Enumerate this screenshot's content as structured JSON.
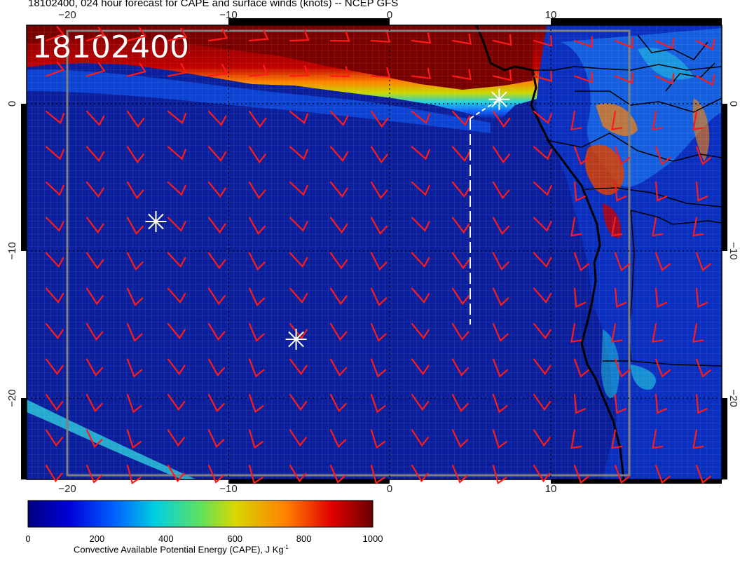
{
  "title": "18102400, 024 hour forecast for CAPE and surface winds (knots) -- NCEP GFS",
  "stamp": "18102400",
  "axes": {
    "lon_ticks_top": [
      "−20",
      "−10",
      "0",
      "10"
    ],
    "lon_ticks_bottom": [
      "−20",
      "−10",
      "0",
      "10"
    ],
    "lat_ticks_left": [
      "0",
      "−10",
      "−20"
    ],
    "lat_ticks_right": [
      "0",
      "−10",
      "−20"
    ],
    "lon_values": [
      -20,
      -10,
      0,
      10
    ],
    "lat_values": [
      0,
      -10,
      -20
    ]
  },
  "colorbar": {
    "title": "Convective Available Potential Energy (CAPE), J Kg",
    "title_sup": "-1",
    "tick_labels": [
      "0",
      "200",
      "400",
      "600",
      "800",
      "1000"
    ],
    "tick_values": [
      0,
      200,
      400,
      600,
      800,
      1000
    ],
    "stops": [
      "#00007f",
      "#0000d9",
      "#0060ff",
      "#00d0e0",
      "#60e060",
      "#d8d800",
      "#ff8000",
      "#e00000",
      "#6a0000"
    ]
  },
  "colors": {
    "ocean_base": "#0b1f9c",
    "high_cape": "#7a0000",
    "barb": "#ff1a1a",
    "marker": "#ffffff",
    "coast": "#000000"
  },
  "markers": [
    {
      "name": "marker-north",
      "lon": 6.8,
      "lat": 0.3
    },
    {
      "name": "marker-west",
      "lon": -14.5,
      "lat": -8.0
    },
    {
      "name": "marker-south",
      "lon": -5.8,
      "lat": -16.0
    }
  ],
  "track": {
    "lon": 5.0,
    "lat_top": -1.0,
    "lat_bottom": -15.0
  }
}
